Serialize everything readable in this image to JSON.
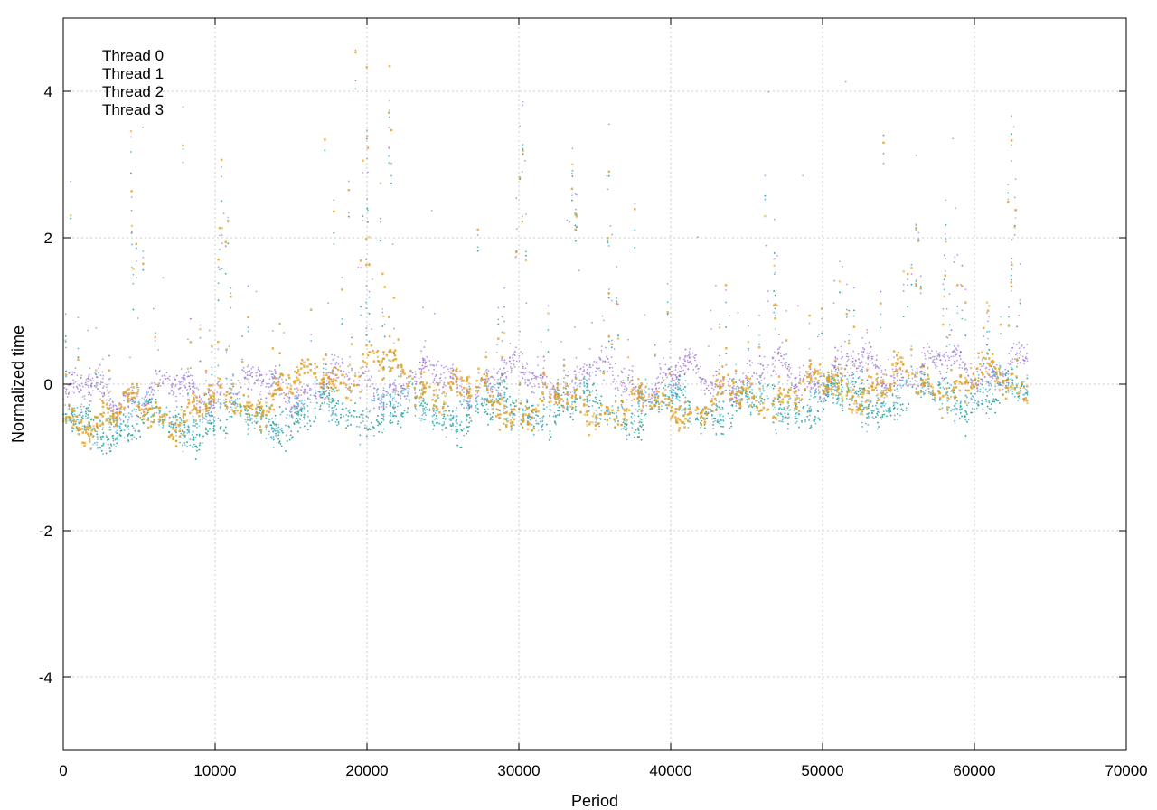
{
  "chart_data": {
    "type": "scatter",
    "title": "",
    "xlabel": "Period",
    "ylabel": "Normalized time",
    "xlim": [
      0,
      70000
    ],
    "ylim": [
      -5,
      5
    ],
    "xticks": [
      0,
      10000,
      20000,
      30000,
      40000,
      50000,
      60000,
      70000
    ],
    "yticks": [
      -4,
      -2,
      0,
      2,
      4
    ],
    "grid": true,
    "legend_position": "top-left",
    "x_max_data": 63500,
    "series": [
      {
        "name": "Thread 0",
        "color": "#9b72cf",
        "marker": "dot",
        "baseline": [
          [
            0,
            -0.15
          ],
          [
            10000,
            -0.1
          ],
          [
            20000,
            0.0
          ],
          [
            30000,
            0.1
          ],
          [
            40000,
            0.05
          ],
          [
            50000,
            0.15
          ],
          [
            60000,
            0.25
          ],
          [
            63500,
            0.2
          ]
        ]
      },
      {
        "name": "Thread 1",
        "color": "#2aa198",
        "marker": "dot",
        "baseline": [
          [
            0,
            -0.6
          ],
          [
            10000,
            -0.55
          ],
          [
            20000,
            -0.4
          ],
          [
            30000,
            -0.35
          ],
          [
            40000,
            -0.35
          ],
          [
            50000,
            -0.25
          ],
          [
            60000,
            -0.15
          ],
          [
            63500,
            -0.2
          ]
        ]
      },
      {
        "name": "Thread 2",
        "color": "#5bb8d4",
        "marker": "dot",
        "baseline": [
          [
            0,
            -0.5
          ],
          [
            10000,
            -0.45
          ],
          [
            20000,
            -0.3
          ],
          [
            30000,
            -0.3
          ],
          [
            40000,
            -0.3
          ],
          [
            50000,
            -0.2
          ],
          [
            60000,
            -0.1
          ],
          [
            63500,
            -0.15
          ]
        ]
      },
      {
        "name": "Thread 3",
        "color": "#e0a020",
        "marker": "square",
        "baseline": [
          [
            0,
            -0.45
          ],
          [
            10000,
            -0.35
          ],
          [
            20000,
            0.25
          ],
          [
            30000,
            -0.3
          ],
          [
            40000,
            -0.3
          ],
          [
            50000,
            -0.05
          ],
          [
            60000,
            0.05
          ],
          [
            63500,
            -0.05
          ]
        ]
      }
    ],
    "spikes": [
      4500,
      10500,
      20000,
      21500,
      30200,
      33500,
      36000,
      46500,
      51500,
      56000,
      58500,
      62500
    ]
  }
}
